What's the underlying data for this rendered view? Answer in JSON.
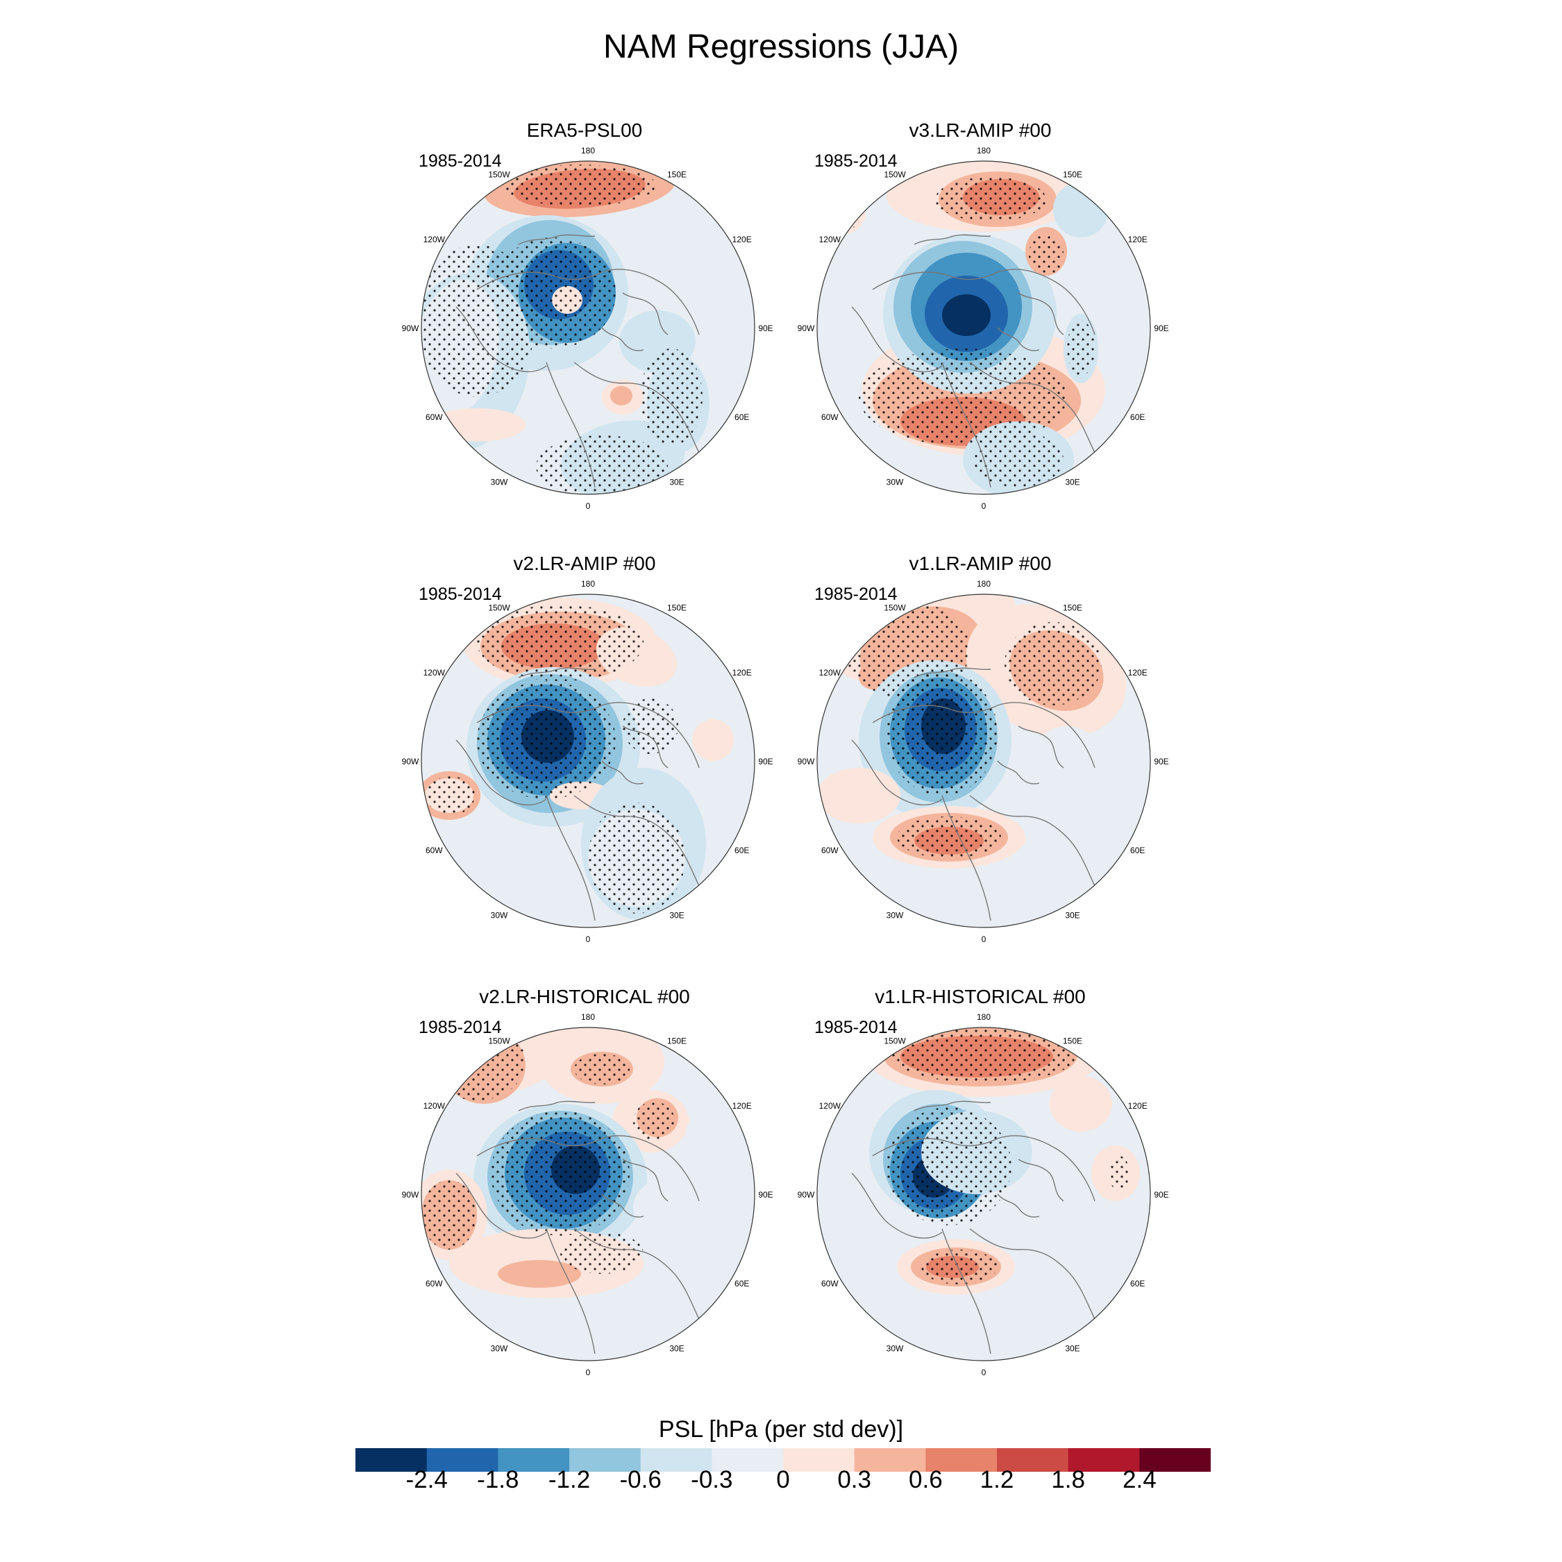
{
  "figure": {
    "title": "NAM Regressions (JJA)",
    "panels": [
      {
        "title": "ERA5-PSL00",
        "period": "1985-2014"
      },
      {
        "title": "v3.LR-AMIP  #00",
        "period": "1985-2014"
      },
      {
        "title": "v2.LR-AMIP  #00",
        "period": "1985-2014"
      },
      {
        "title": "v1.LR-AMIP  #00",
        "period": "1985-2014"
      },
      {
        "title": "v2.LR-HISTORICAL  #00",
        "period": "1985-2014"
      },
      {
        "title": "v1.LR-HISTORICAL  #00",
        "period": "1985-2014"
      }
    ],
    "lon_labels": {
      "top": "180",
      "bottom": "0",
      "left": "90W",
      "right": "90E",
      "upper_left_1": "150W",
      "upper_left_2": "120W",
      "upper_right_1": "150E",
      "upper_right_2": "120E",
      "lower_left_1": "60W",
      "lower_left_2": "30W",
      "lower_right_1": "60E",
      "lower_right_2": "30E"
    }
  },
  "colorbar": {
    "title": "PSL [hPa (per std dev)]",
    "labels": [
      "-2.4",
      "-1.8",
      "-1.2",
      "-0.6",
      "-0.3",
      "0",
      "0.3",
      "0.6",
      "1.2",
      "1.8",
      "2.4"
    ],
    "colors": [
      "#053061",
      "#2166ac",
      "#4393c3",
      "#92c5de",
      "#d1e5f0",
      "#e8eef3",
      "#fbe5dc",
      "#f4b59c",
      "#e7836a",
      "#cc4c45",
      "#b2182b",
      "#67001f"
    ]
  },
  "colors": {
    "ocean_neutral": "#e8eef3",
    "coast": "#777777",
    "stipple": "#000000"
  }
}
